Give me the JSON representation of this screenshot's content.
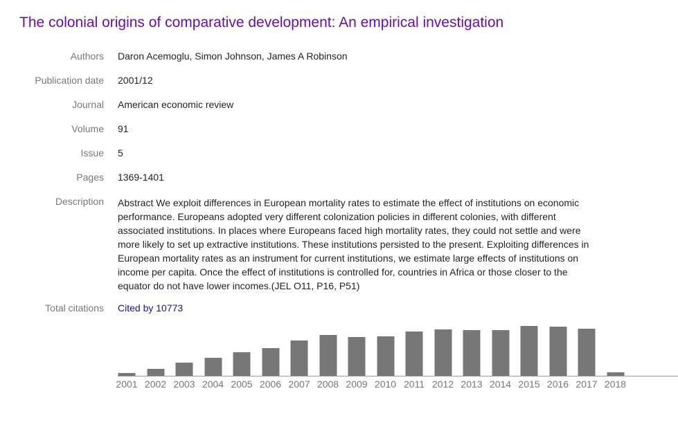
{
  "page": {
    "title": "The colonial origins of comparative development: An empirical investigation"
  },
  "colors": {
    "title_link": "#6a0dad",
    "field_label": "#777777",
    "field_value": "#222222",
    "citation_link": "#1a0dab",
    "bar": "#777777",
    "axis_line": "#999999",
    "year_label": "#757575",
    "background": "#ffffff"
  },
  "fields": [
    {
      "label": "Authors",
      "value": "Daron Acemoglu, Simon Johnson, James A Robinson"
    },
    {
      "label": "Publication date",
      "value": "2001/12"
    },
    {
      "label": "Journal",
      "value": "American economic review"
    },
    {
      "label": "Volume",
      "value": "91"
    },
    {
      "label": "Issue",
      "value": "5"
    },
    {
      "label": "Pages",
      "value": "1369-1401"
    },
    {
      "label": "Description",
      "value": "Abstract We exploit differences in European mortality rates to estimate the effect of institutions on economic performance. Europeans adopted very different colonization policies in different colonies, with different associated institutions. In places where Europeans faced high mortality rates, they could not settle and were more likely to set up extractive institutions. These institutions persisted to the present. Exploiting differences in European mortality rates as an instrument for current institutions, we estimate large effects of institutions on income per capita. Once the effect of institutions is controlled for, countries in Africa or those closer to the equator do not have lower incomes.(JEL O11, P16, P51)"
    }
  ],
  "citations": {
    "label": "Total citations",
    "link_text": "Cited by 10773",
    "total": 10773
  },
  "chart_data": {
    "type": "bar",
    "title": "",
    "xlabel": "",
    "ylabel": "",
    "grid": false,
    "legend": "none",
    "categories": [
      "2001",
      "2002",
      "2003",
      "2004",
      "2005",
      "2006",
      "2007",
      "2008",
      "2009",
      "2010",
      "2011",
      "2012",
      "2013",
      "2014",
      "2015",
      "2016",
      "2017",
      "2018"
    ],
    "values": [
      4,
      10,
      19,
      26,
      34,
      40,
      51,
      59,
      56,
      57,
      64,
      67,
      66,
      66,
      72,
      71,
      68,
      5
    ],
    "values_unit": "relative bar height in px (chart shows no y-axis labels)"
  }
}
